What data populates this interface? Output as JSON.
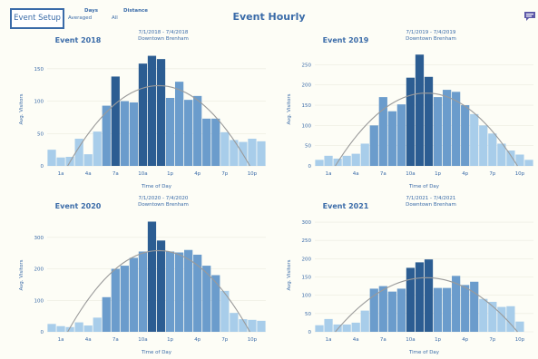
{
  "header": {
    "setup_label": "Event Setup",
    "days_label": "Days",
    "days_value": "Averaged",
    "distance_label": "Distance",
    "distance_value": "All",
    "title": "Event Hourly",
    "chat_icon": "chat-bubble-icon"
  },
  "colors": {
    "accent": "#3a6ba8",
    "bar_light": "#a8cdea",
    "bar_mid": "#6b9ccc",
    "bar_dark": "#2c5d92",
    "curve": "#9a9a9a",
    "background": "#fdfdf6"
  },
  "x_tick_labels": [
    "1a",
    "4a",
    "7a",
    "10a",
    "1p",
    "4p",
    "7p",
    "10p"
  ],
  "x_axis_title": "Time of Day",
  "y_axis_title": "Avg. Visitors",
  "chart_data": [
    {
      "type": "bar",
      "title": "Event 2018",
      "date_range": "7/1/2018 - 7/4/2018",
      "location": "Downtown Brenham",
      "xlabel": "Time of Day",
      "ylabel": "Avg. Visitors",
      "ylim": [
        0,
        175
      ],
      "y_ticks": [
        0,
        50,
        100,
        150
      ],
      "values": [
        25,
        13,
        14,
        42,
        18,
        53,
        93,
        138,
        100,
        98,
        158,
        170,
        165,
        105,
        130,
        102,
        108,
        73,
        73,
        52,
        40,
        37,
        42,
        38
      ],
      "shade": [
        0,
        0,
        0,
        0,
        0,
        0,
        1,
        2,
        1,
        1,
        2,
        2,
        2,
        1,
        1,
        1,
        1,
        1,
        1,
        0,
        0,
        0,
        0,
        0
      ],
      "curve_peak": 124
    },
    {
      "type": "bar",
      "title": "Event 2019",
      "date_range": "7/1/2019 - 7/4/2019",
      "location": "Downtown Brenham",
      "xlabel": "Time of Day",
      "ylabel": "Avg. Visitors",
      "ylim": [
        0,
        280
      ],
      "y_ticks": [
        0,
        50,
        100,
        150,
        200,
        250
      ],
      "values": [
        15,
        25,
        18,
        25,
        30,
        55,
        100,
        170,
        135,
        152,
        218,
        275,
        220,
        170,
        188,
        183,
        150,
        128,
        100,
        80,
        55,
        38,
        28,
        15
      ],
      "shade": [
        0,
        0,
        0,
        0,
        0,
        0,
        1,
        1,
        1,
        1,
        2,
        2,
        2,
        1,
        1,
        1,
        1,
        0,
        0,
        0,
        0,
        0,
        0,
        0
      ],
      "curve_peak": 180
    },
    {
      "type": "bar",
      "title": "Event 2020",
      "date_range": "7/1/2020 - 7/4/2020",
      "location": "Downtown Brenham",
      "xlabel": "Time of Day",
      "ylabel": "Avg. Visitors",
      "ylim": [
        0,
        360
      ],
      "y_ticks": [
        0,
        100,
        200,
        300
      ],
      "values": [
        25,
        18,
        15,
        30,
        20,
        45,
        110,
        200,
        210,
        235,
        255,
        350,
        290,
        255,
        252,
        260,
        245,
        210,
        180,
        130,
        60,
        40,
        38,
        35
      ],
      "shade": [
        0,
        0,
        0,
        0,
        0,
        0,
        1,
        1,
        1,
        1,
        1,
        2,
        2,
        1,
        1,
        1,
        1,
        1,
        1,
        0,
        0,
        0,
        0,
        0
      ],
      "curve_peak": 258
    },
    {
      "type": "bar",
      "title": "Event 2021",
      "date_range": "7/1/2021 - 7/4/2021",
      "location": "Downtown Brenham",
      "xlabel": "Time of Day",
      "ylabel": "Avg. Visitors",
      "ylim": [
        0,
        310
      ],
      "y_ticks": [
        0,
        50,
        100,
        150,
        200,
        250,
        300
      ],
      "values": [
        18,
        35,
        20,
        20,
        25,
        58,
        118,
        125,
        110,
        118,
        175,
        190,
        198,
        120,
        120,
        153,
        128,
        137,
        90,
        82,
        68,
        70,
        28,
        0
      ],
      "shade": [
        0,
        0,
        0,
        0,
        0,
        0,
        1,
        1,
        1,
        1,
        2,
        2,
        2,
        1,
        1,
        1,
        1,
        1,
        0,
        0,
        0,
        0,
        0,
        0
      ],
      "curve_peak": 148
    }
  ]
}
